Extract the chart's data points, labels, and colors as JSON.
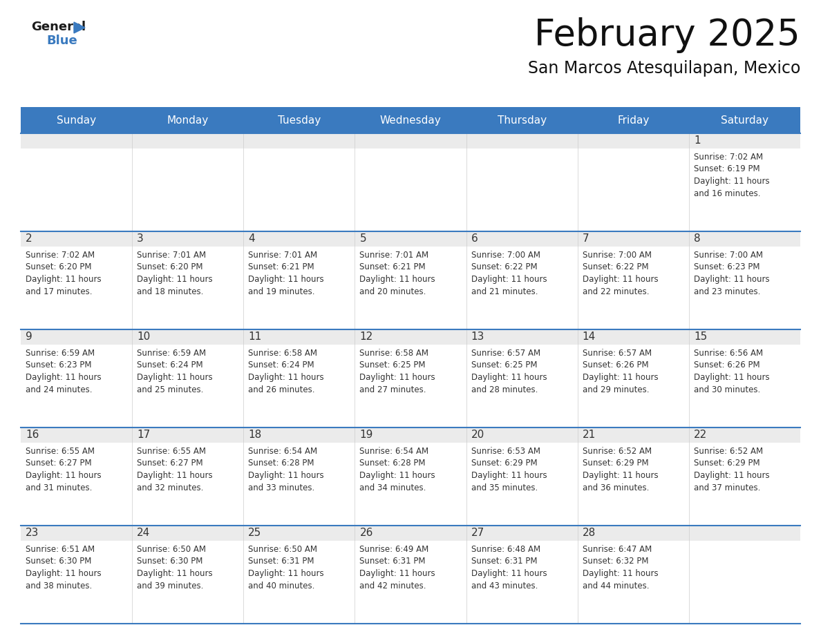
{
  "title": "February 2025",
  "subtitle": "San Marcos Atesquilapan, Mexico",
  "header_color": "#3a7abf",
  "header_text_color": "#ffffff",
  "weekdays": [
    "Sunday",
    "Monday",
    "Tuesday",
    "Wednesday",
    "Thursday",
    "Friday",
    "Saturday"
  ],
  "background_color": "#ffffff",
  "row_header_bg": "#ebebeb",
  "divider_color": "#3a7abf",
  "day_number_color": "#333333",
  "info_text_color": "#333333",
  "calendar": [
    [
      null,
      null,
      null,
      null,
      null,
      null,
      {
        "day": 1,
        "sunrise": "7:02 AM",
        "sunset": "6:19 PM",
        "daylight": "11 hours and 16 minutes."
      }
    ],
    [
      {
        "day": 2,
        "sunrise": "7:02 AM",
        "sunset": "6:20 PM",
        "daylight": "11 hours and 17 minutes."
      },
      {
        "day": 3,
        "sunrise": "7:01 AM",
        "sunset": "6:20 PM",
        "daylight": "11 hours and 18 minutes."
      },
      {
        "day": 4,
        "sunrise": "7:01 AM",
        "sunset": "6:21 PM",
        "daylight": "11 hours and 19 minutes."
      },
      {
        "day": 5,
        "sunrise": "7:01 AM",
        "sunset": "6:21 PM",
        "daylight": "11 hours and 20 minutes."
      },
      {
        "day": 6,
        "sunrise": "7:00 AM",
        "sunset": "6:22 PM",
        "daylight": "11 hours and 21 minutes."
      },
      {
        "day": 7,
        "sunrise": "7:00 AM",
        "sunset": "6:22 PM",
        "daylight": "11 hours and 22 minutes."
      },
      {
        "day": 8,
        "sunrise": "7:00 AM",
        "sunset": "6:23 PM",
        "daylight": "11 hours and 23 minutes."
      }
    ],
    [
      {
        "day": 9,
        "sunrise": "6:59 AM",
        "sunset": "6:23 PM",
        "daylight": "11 hours and 24 minutes."
      },
      {
        "day": 10,
        "sunrise": "6:59 AM",
        "sunset": "6:24 PM",
        "daylight": "11 hours and 25 minutes."
      },
      {
        "day": 11,
        "sunrise": "6:58 AM",
        "sunset": "6:24 PM",
        "daylight": "11 hours and 26 minutes."
      },
      {
        "day": 12,
        "sunrise": "6:58 AM",
        "sunset": "6:25 PM",
        "daylight": "11 hours and 27 minutes."
      },
      {
        "day": 13,
        "sunrise": "6:57 AM",
        "sunset": "6:25 PM",
        "daylight": "11 hours and 28 minutes."
      },
      {
        "day": 14,
        "sunrise": "6:57 AM",
        "sunset": "6:26 PM",
        "daylight": "11 hours and 29 minutes."
      },
      {
        "day": 15,
        "sunrise": "6:56 AM",
        "sunset": "6:26 PM",
        "daylight": "11 hours and 30 minutes."
      }
    ],
    [
      {
        "day": 16,
        "sunrise": "6:55 AM",
        "sunset": "6:27 PM",
        "daylight": "11 hours and 31 minutes."
      },
      {
        "day": 17,
        "sunrise": "6:55 AM",
        "sunset": "6:27 PM",
        "daylight": "11 hours and 32 minutes."
      },
      {
        "day": 18,
        "sunrise": "6:54 AM",
        "sunset": "6:28 PM",
        "daylight": "11 hours and 33 minutes."
      },
      {
        "day": 19,
        "sunrise": "6:54 AM",
        "sunset": "6:28 PM",
        "daylight": "11 hours and 34 minutes."
      },
      {
        "day": 20,
        "sunrise": "6:53 AM",
        "sunset": "6:29 PM",
        "daylight": "11 hours and 35 minutes."
      },
      {
        "day": 21,
        "sunrise": "6:52 AM",
        "sunset": "6:29 PM",
        "daylight": "11 hours and 36 minutes."
      },
      {
        "day": 22,
        "sunrise": "6:52 AM",
        "sunset": "6:29 PM",
        "daylight": "11 hours and 37 minutes."
      }
    ],
    [
      {
        "day": 23,
        "sunrise": "6:51 AM",
        "sunset": "6:30 PM",
        "daylight": "11 hours and 38 minutes."
      },
      {
        "day": 24,
        "sunrise": "6:50 AM",
        "sunset": "6:30 PM",
        "daylight": "11 hours and 39 minutes."
      },
      {
        "day": 25,
        "sunrise": "6:50 AM",
        "sunset": "6:31 PM",
        "daylight": "11 hours and 40 minutes."
      },
      {
        "day": 26,
        "sunrise": "6:49 AM",
        "sunset": "6:31 PM",
        "daylight": "11 hours and 42 minutes."
      },
      {
        "day": 27,
        "sunrise": "6:48 AM",
        "sunset": "6:31 PM",
        "daylight": "11 hours and 43 minutes."
      },
      {
        "day": 28,
        "sunrise": "6:47 AM",
        "sunset": "6:32 PM",
        "daylight": "11 hours and 44 minutes."
      },
      null
    ]
  ],
  "logo_general_color": "#1a1a1a",
  "logo_blue_color": "#3a7abf",
  "logo_triangle_color": "#3a7abf"
}
